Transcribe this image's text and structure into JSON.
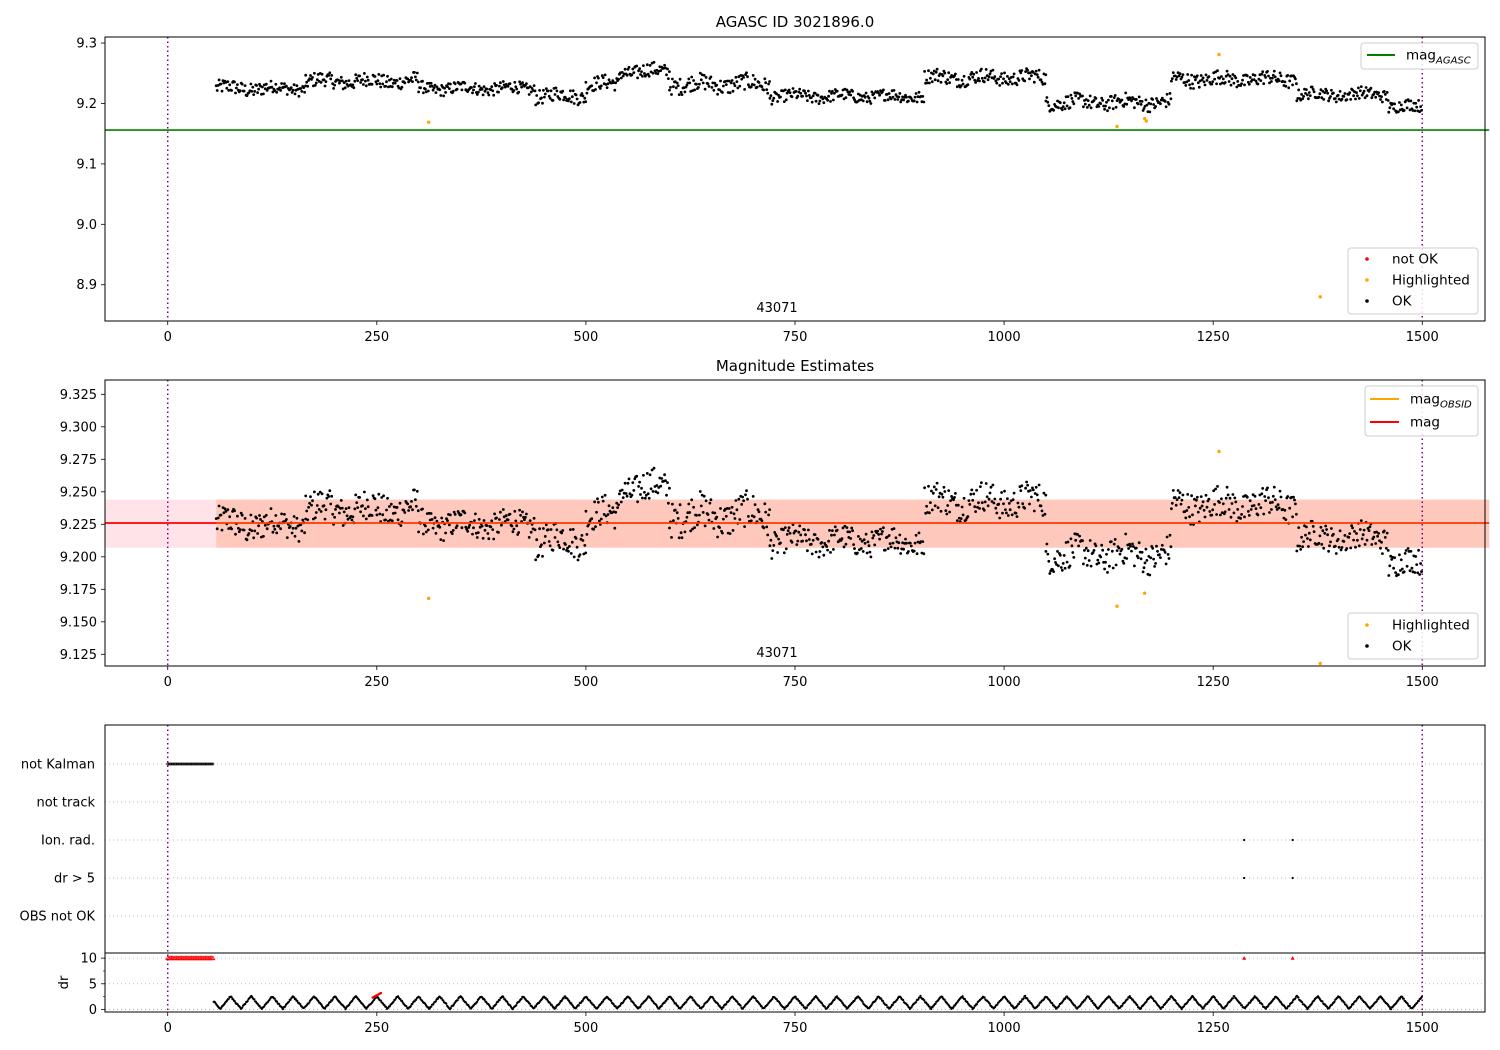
{
  "chart_data": [
    {
      "type": "scatter",
      "title": "AGASC ID 3021896.0",
      "xlim": [
        -75,
        1575
      ],
      "ylim": [
        8.84,
        9.31
      ],
      "xticks": [
        0,
        250,
        500,
        750,
        1000,
        1250,
        1500
      ],
      "yticks": [
        8.9,
        9.0,
        9.1,
        9.2,
        9.3
      ],
      "ytick_labels": [
        "8.9",
        "9.0",
        "9.1",
        "9.2",
        "9.3"
      ],
      "obsid_boundaries": [
        0,
        1500
      ],
      "annotation": {
        "text": "43071",
        "x": 750
      },
      "lines": [
        {
          "name": "mag_AGASC",
          "color": "#008000",
          "y": 9.156,
          "x": [
            -75,
            1580
          ]
        }
      ],
      "series": [
        {
          "name": "OK",
          "color": "#000000",
          "segments": [
            {
              "x": [
                58,
                120
              ],
              "base": 9.225,
              "amp": 0.012
            },
            {
              "x": [
                120,
                165
              ],
              "base": 9.225,
              "amp": 0.01
            },
            {
              "x": [
                165,
                300
              ],
              "base": 9.237,
              "amp": 0.012
            },
            {
              "x": [
                300,
                440
              ],
              "base": 9.225,
              "amp": 0.01
            },
            {
              "x": [
                440,
                500
              ],
              "base": 9.213,
              "amp": 0.012
            },
            {
              "x": [
                500,
                540
              ],
              "base": 9.232,
              "amp": 0.012
            },
            {
              "x": [
                540,
                600
              ],
              "base": 9.253,
              "amp": 0.012
            },
            {
              "x": [
                600,
                720
              ],
              "base": 9.232,
              "amp": 0.014
            },
            {
              "x": [
                720,
                905
              ],
              "base": 9.212,
              "amp": 0.01
            },
            {
              "x": [
                905,
                1050
              ],
              "base": 9.243,
              "amp": 0.012
            },
            {
              "x": [
                1050,
                1200
              ],
              "base": 9.202,
              "amp": 0.012
            },
            {
              "x": [
                1200,
                1350
              ],
              "base": 9.24,
              "amp": 0.012
            },
            {
              "x": [
                1350,
                1460
              ],
              "base": 9.215,
              "amp": 0.01
            },
            {
              "x": [
                1460,
                1500
              ],
              "base": 9.195,
              "amp": 0.01
            }
          ]
        },
        {
          "name": "Highlighted",
          "color": "#ffa500",
          "points": [
            [
              312,
              9.169
            ],
            [
              1135,
              9.162
            ],
            [
              1168,
              9.175
            ],
            [
              1170,
              9.171
            ],
            [
              1257,
              9.281
            ],
            [
              1378,
              8.88
            ]
          ]
        },
        {
          "name": "not OK",
          "color": "#ff0000",
          "points": []
        }
      ],
      "legend": {
        "top_right": [
          {
            "label": "mag",
            "sub": "AGASC",
            "color": "#008000"
          }
        ],
        "bottom_right": [
          {
            "label": "not OK",
            "color": "#ff0000"
          },
          {
            "label": "Highlighted",
            "color": "#ffa500"
          },
          {
            "label": "OK",
            "color": "#000000"
          }
        ]
      }
    },
    {
      "type": "scatter",
      "title": "Magnitude Estimates",
      "xlim": [
        -75,
        1575
      ],
      "ylim": [
        9.116,
        9.336
      ],
      "xticks": [
        0,
        250,
        500,
        750,
        1000,
        1250,
        1500
      ],
      "yticks": [
        9.125,
        9.15,
        9.175,
        9.2,
        9.225,
        9.25,
        9.275,
        9.3,
        9.325
      ],
      "ytick_labels": [
        "9.125",
        "9.150",
        "9.175",
        "9.200",
        "9.225",
        "9.250",
        "9.275",
        "9.300",
        "9.325"
      ],
      "obsid_boundaries": [
        0,
        1500
      ],
      "annotation": {
        "text": "43071",
        "x": 750
      },
      "bands": [
        {
          "name": "mag band",
          "color": "#ffc0cb",
          "y": [
            9.207,
            9.244
          ],
          "x": [
            -75,
            1580
          ]
        },
        {
          "name": "mag_OBSID band",
          "color": "#ffa07a",
          "y": [
            9.207,
            9.244
          ],
          "x": [
            58,
            1580
          ]
        }
      ],
      "lines": [
        {
          "name": "mag",
          "color": "#ff0000",
          "y": 9.226,
          "x": [
            -75,
            1580
          ]
        },
        {
          "name": "mag_OBSID",
          "color": "#ffa500",
          "y": 9.226,
          "x": [
            58,
            1580
          ]
        }
      ],
      "series": [
        {
          "name": "OK",
          "color": "#000000",
          "segments": [
            {
              "x": [
                58,
                120
              ],
              "base": 9.225,
              "amp": 0.012
            },
            {
              "x": [
                120,
                165
              ],
              "base": 9.225,
              "amp": 0.01
            },
            {
              "x": [
                165,
                300
              ],
              "base": 9.237,
              "amp": 0.012
            },
            {
              "x": [
                300,
                440
              ],
              "base": 9.225,
              "amp": 0.01
            },
            {
              "x": [
                440,
                500
              ],
              "base": 9.213,
              "amp": 0.012
            },
            {
              "x": [
                500,
                540
              ],
              "base": 9.232,
              "amp": 0.012
            },
            {
              "x": [
                540,
                600
              ],
              "base": 9.253,
              "amp": 0.012
            },
            {
              "x": [
                600,
                720
              ],
              "base": 9.232,
              "amp": 0.014
            },
            {
              "x": [
                720,
                905
              ],
              "base": 9.212,
              "amp": 0.01
            },
            {
              "x": [
                905,
                1050
              ],
              "base": 9.243,
              "amp": 0.012
            },
            {
              "x": [
                1050,
                1200
              ],
              "base": 9.202,
              "amp": 0.012
            },
            {
              "x": [
                1200,
                1350
              ],
              "base": 9.24,
              "amp": 0.012
            },
            {
              "x": [
                1350,
                1460
              ],
              "base": 9.215,
              "amp": 0.01
            },
            {
              "x": [
                1460,
                1500
              ],
              "base": 9.195,
              "amp": 0.01
            }
          ]
        },
        {
          "name": "Highlighted",
          "color": "#ffa500",
          "points": [
            [
              312,
              9.168
            ],
            [
              1135,
              9.162
            ],
            [
              1168,
              9.172
            ],
            [
              1257,
              9.281
            ],
            [
              1378,
              9.118
            ]
          ]
        }
      ],
      "legend": {
        "top_right": [
          {
            "label": "mag",
            "sub": "OBSID",
            "color": "#ffa500"
          },
          {
            "label": "mag",
            "sub": "",
            "color": "#ff0000"
          }
        ],
        "bottom_right": [
          {
            "label": "Highlighted",
            "color": "#ffa500"
          },
          {
            "label": "OK",
            "color": "#000000"
          }
        ]
      }
    },
    {
      "type": "scatter",
      "xlim": [
        -75,
        1575
      ],
      "xticks": [
        0,
        250,
        500,
        750,
        1000,
        1250,
        1500
      ],
      "obsid_boundaries": [
        0,
        1500
      ],
      "flag_rows": [
        {
          "label": "not Kalman",
          "points_x_range": [
            0,
            55
          ]
        },
        {
          "label": "not track",
          "points_x_range": []
        },
        {
          "label": "Ion. rad.",
          "points": [
            1287,
            1345
          ]
        },
        {
          "label": "dr > 5",
          "points": [
            1287,
            1345
          ]
        },
        {
          "label": "OBS not OK",
          "points_x_range": []
        }
      ],
      "dr": {
        "ylabel": "dr",
        "ylim": [
          -0.5,
          11
        ],
        "yticks": [
          0,
          5,
          10
        ],
        "clipped_points_color": "#ff0000",
        "clipped_x": [
          [
            0,
            55
          ],
          [
            1287
          ],
          [
            1345
          ]
        ],
        "clip_value": 10,
        "cycle": 25,
        "max_dr": 2.7,
        "x_range": [
          55,
          1500
        ]
      }
    }
  ]
}
